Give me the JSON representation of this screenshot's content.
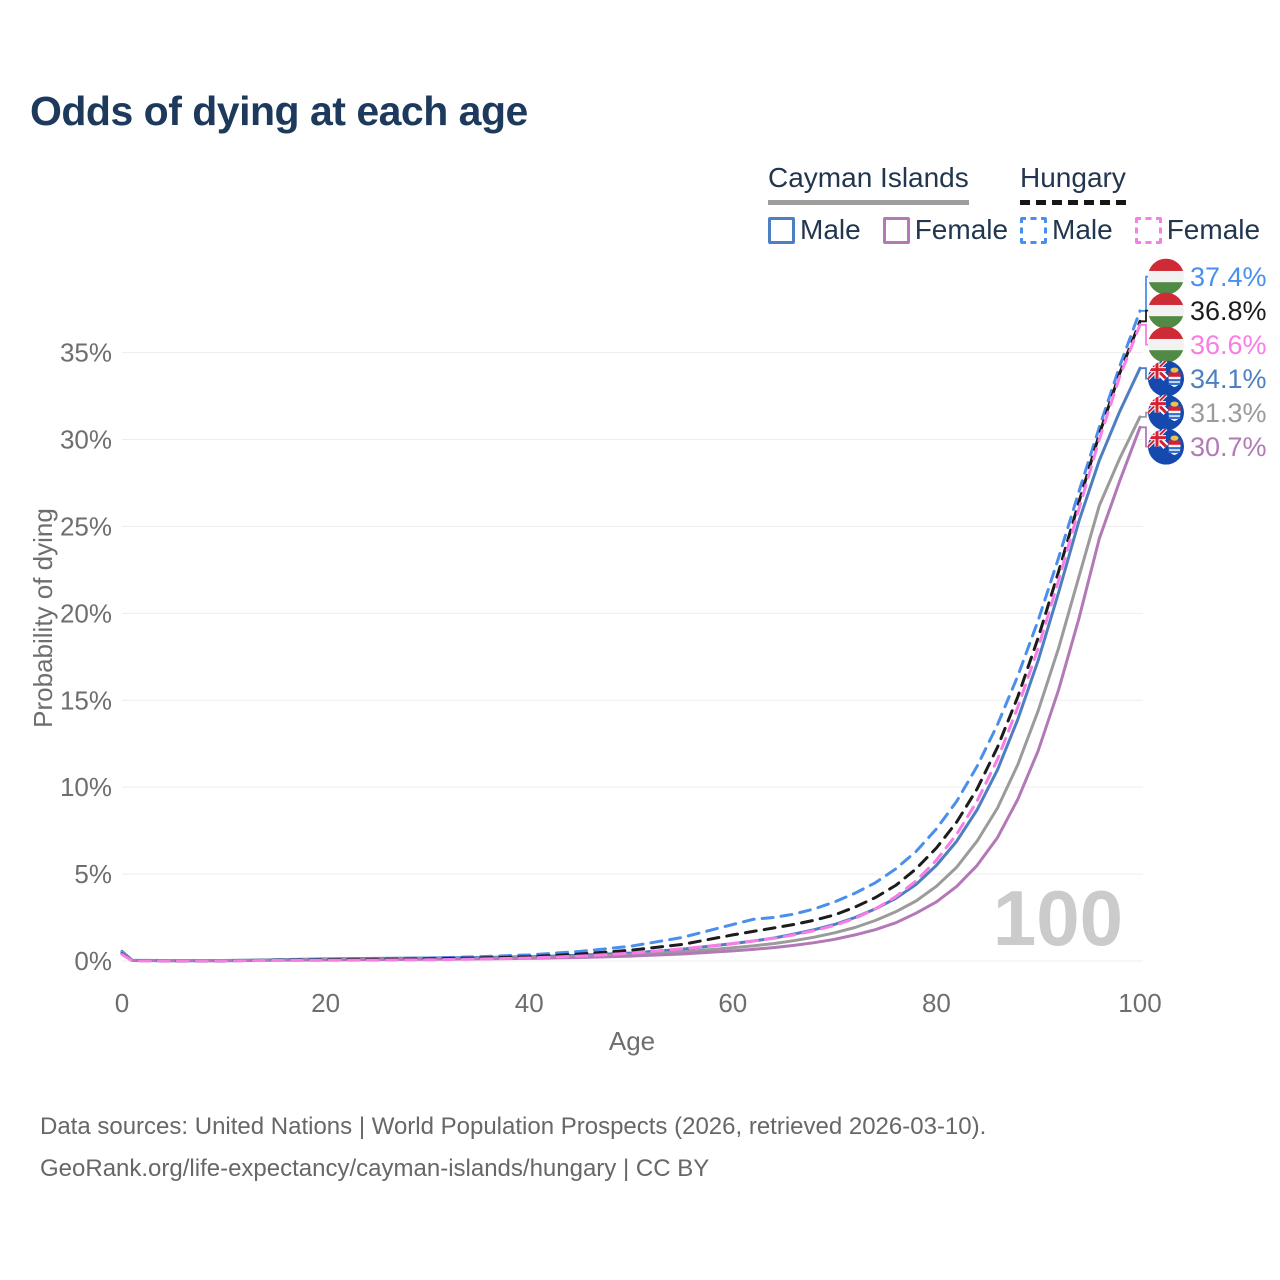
{
  "title": "Odds of dying at each age",
  "watermark": "100",
  "legend": {
    "groups": [
      {
        "name": "Cayman Islands",
        "line_style": "solid",
        "underline_color": "#9e9e9e",
        "items": [
          {
            "label": "Male",
            "color": "#4e7fc1"
          },
          {
            "label": "Female",
            "color": "#b279b6"
          }
        ]
      },
      {
        "name": "Hungary",
        "line_style": "dashed",
        "underline_color": "#161616",
        "items": [
          {
            "label": "Male",
            "color": "#4b8fec"
          },
          {
            "label": "Female",
            "color": "#f87de6"
          }
        ]
      }
    ]
  },
  "footer": {
    "line1": "Data sources: United Nations | World Population Prospects (2026, retrieved 2026-03-10).",
    "line2": "GeoRank.org/life-expectancy/cayman-islands/hungary | CC BY"
  },
  "chart_data": {
    "type": "line",
    "title": "Odds of dying at each age",
    "xlabel": "Age",
    "ylabel": "Probability of dying",
    "xlim": [
      0,
      100
    ],
    "ylim": [
      0,
      35
    ],
    "x_ticks": [
      0,
      20,
      40,
      60,
      80,
      100
    ],
    "y_ticks": [
      0,
      5,
      10,
      15,
      20,
      25,
      30,
      35
    ],
    "y_tick_suffix": "%",
    "grid": "horizontal",
    "legend_position": "top-right",
    "x": [
      0,
      1,
      5,
      10,
      15,
      20,
      25,
      30,
      35,
      40,
      45,
      50,
      55,
      60,
      62,
      64,
      66,
      68,
      70,
      72,
      74,
      76,
      78,
      80,
      82,
      84,
      86,
      88,
      90,
      92,
      94,
      96,
      98,
      100
    ],
    "series": [
      {
        "name": "Cayman Islands — Male",
        "country": "Cayman Islands",
        "sex": "male",
        "color": "#4e7fc1",
        "dash": false,
        "flag": "ky",
        "end_label": "34.1%",
        "values": [
          0.55,
          0.04,
          0.025,
          0.03,
          0.07,
          0.12,
          0.15,
          0.17,
          0.2,
          0.25,
          0.33,
          0.46,
          0.68,
          1.0,
          1.15,
          1.32,
          1.55,
          1.8,
          2.1,
          2.5,
          3.0,
          3.6,
          4.4,
          5.5,
          6.9,
          8.7,
          11.0,
          13.9,
          17.3,
          21.2,
          25.3,
          28.8,
          31.6,
          34.1
        ]
      },
      {
        "name": "Cayman Islands — Both sexes",
        "country": "Cayman Islands",
        "sex": "all",
        "color": "#9b9b9b",
        "dash": false,
        "flag": "ky",
        "end_label": "31.3%",
        "values": [
          0.5,
          0.035,
          0.02,
          0.025,
          0.055,
          0.09,
          0.11,
          0.13,
          0.16,
          0.2,
          0.26,
          0.36,
          0.52,
          0.76,
          0.87,
          1.0,
          1.17,
          1.37,
          1.62,
          1.93,
          2.33,
          2.83,
          3.45,
          4.3,
          5.4,
          6.9,
          8.8,
          11.3,
          14.4,
          18.0,
          22.1,
          26.2,
          28.9,
          31.3
        ]
      },
      {
        "name": "Cayman Islands — Female",
        "country": "Cayman Islands",
        "sex": "female",
        "color": "#b279b6",
        "dash": false,
        "flag": "ky",
        "end_label": "30.7%",
        "values": [
          0.45,
          0.03,
          0.018,
          0.02,
          0.04,
          0.06,
          0.08,
          0.1,
          0.12,
          0.15,
          0.2,
          0.28,
          0.4,
          0.58,
          0.67,
          0.77,
          0.9,
          1.05,
          1.25,
          1.5,
          1.8,
          2.2,
          2.75,
          3.4,
          4.3,
          5.5,
          7.1,
          9.3,
          12.1,
          15.6,
          19.7,
          24.3,
          27.6,
          30.7
        ]
      },
      {
        "name": "Hungary — Male",
        "country": "Hungary",
        "sex": "male",
        "color": "#4b8fec",
        "dash": true,
        "flag": "hu",
        "end_label": "37.4%",
        "values": [
          0.45,
          0.03,
          0.02,
          0.02,
          0.05,
          0.1,
          0.13,
          0.17,
          0.25,
          0.35,
          0.55,
          0.85,
          1.35,
          2.1,
          2.4,
          2.5,
          2.7,
          3.0,
          3.4,
          3.9,
          4.5,
          5.3,
          6.3,
          7.6,
          9.2,
          11.2,
          13.6,
          16.4,
          19.6,
          23.2,
          27.0,
          30.7,
          34.2,
          37.4
        ]
      },
      {
        "name": "Hungary — Both sexes",
        "country": "Hungary",
        "sex": "all",
        "color": "#1c1c1c",
        "dash": true,
        "flag": "hu",
        "end_label": "36.8%",
        "values": [
          0.4,
          0.025,
          0.015,
          0.015,
          0.04,
          0.07,
          0.09,
          0.12,
          0.17,
          0.25,
          0.4,
          0.62,
          0.95,
          1.5,
          1.7,
          1.9,
          2.1,
          2.35,
          2.65,
          3.1,
          3.65,
          4.35,
          5.3,
          6.5,
          8.0,
          9.9,
          12.3,
          15.2,
          18.6,
          22.4,
          26.4,
          30.3,
          33.8,
          36.8
        ]
      },
      {
        "name": "Hungary — Female",
        "country": "Hungary",
        "sex": "female",
        "color": "#f87de6",
        "dash": true,
        "flag": "hu",
        "end_label": "36.6%",
        "values": [
          0.38,
          0.02,
          0.012,
          0.012,
          0.03,
          0.04,
          0.05,
          0.07,
          0.11,
          0.17,
          0.28,
          0.45,
          0.7,
          1.0,
          1.15,
          1.3,
          1.5,
          1.75,
          2.05,
          2.45,
          3.0,
          3.7,
          4.6,
          5.8,
          7.3,
          9.2,
          11.6,
          14.6,
          18.0,
          21.9,
          26.0,
          30.0,
          33.6,
          36.6
        ]
      }
    ]
  }
}
